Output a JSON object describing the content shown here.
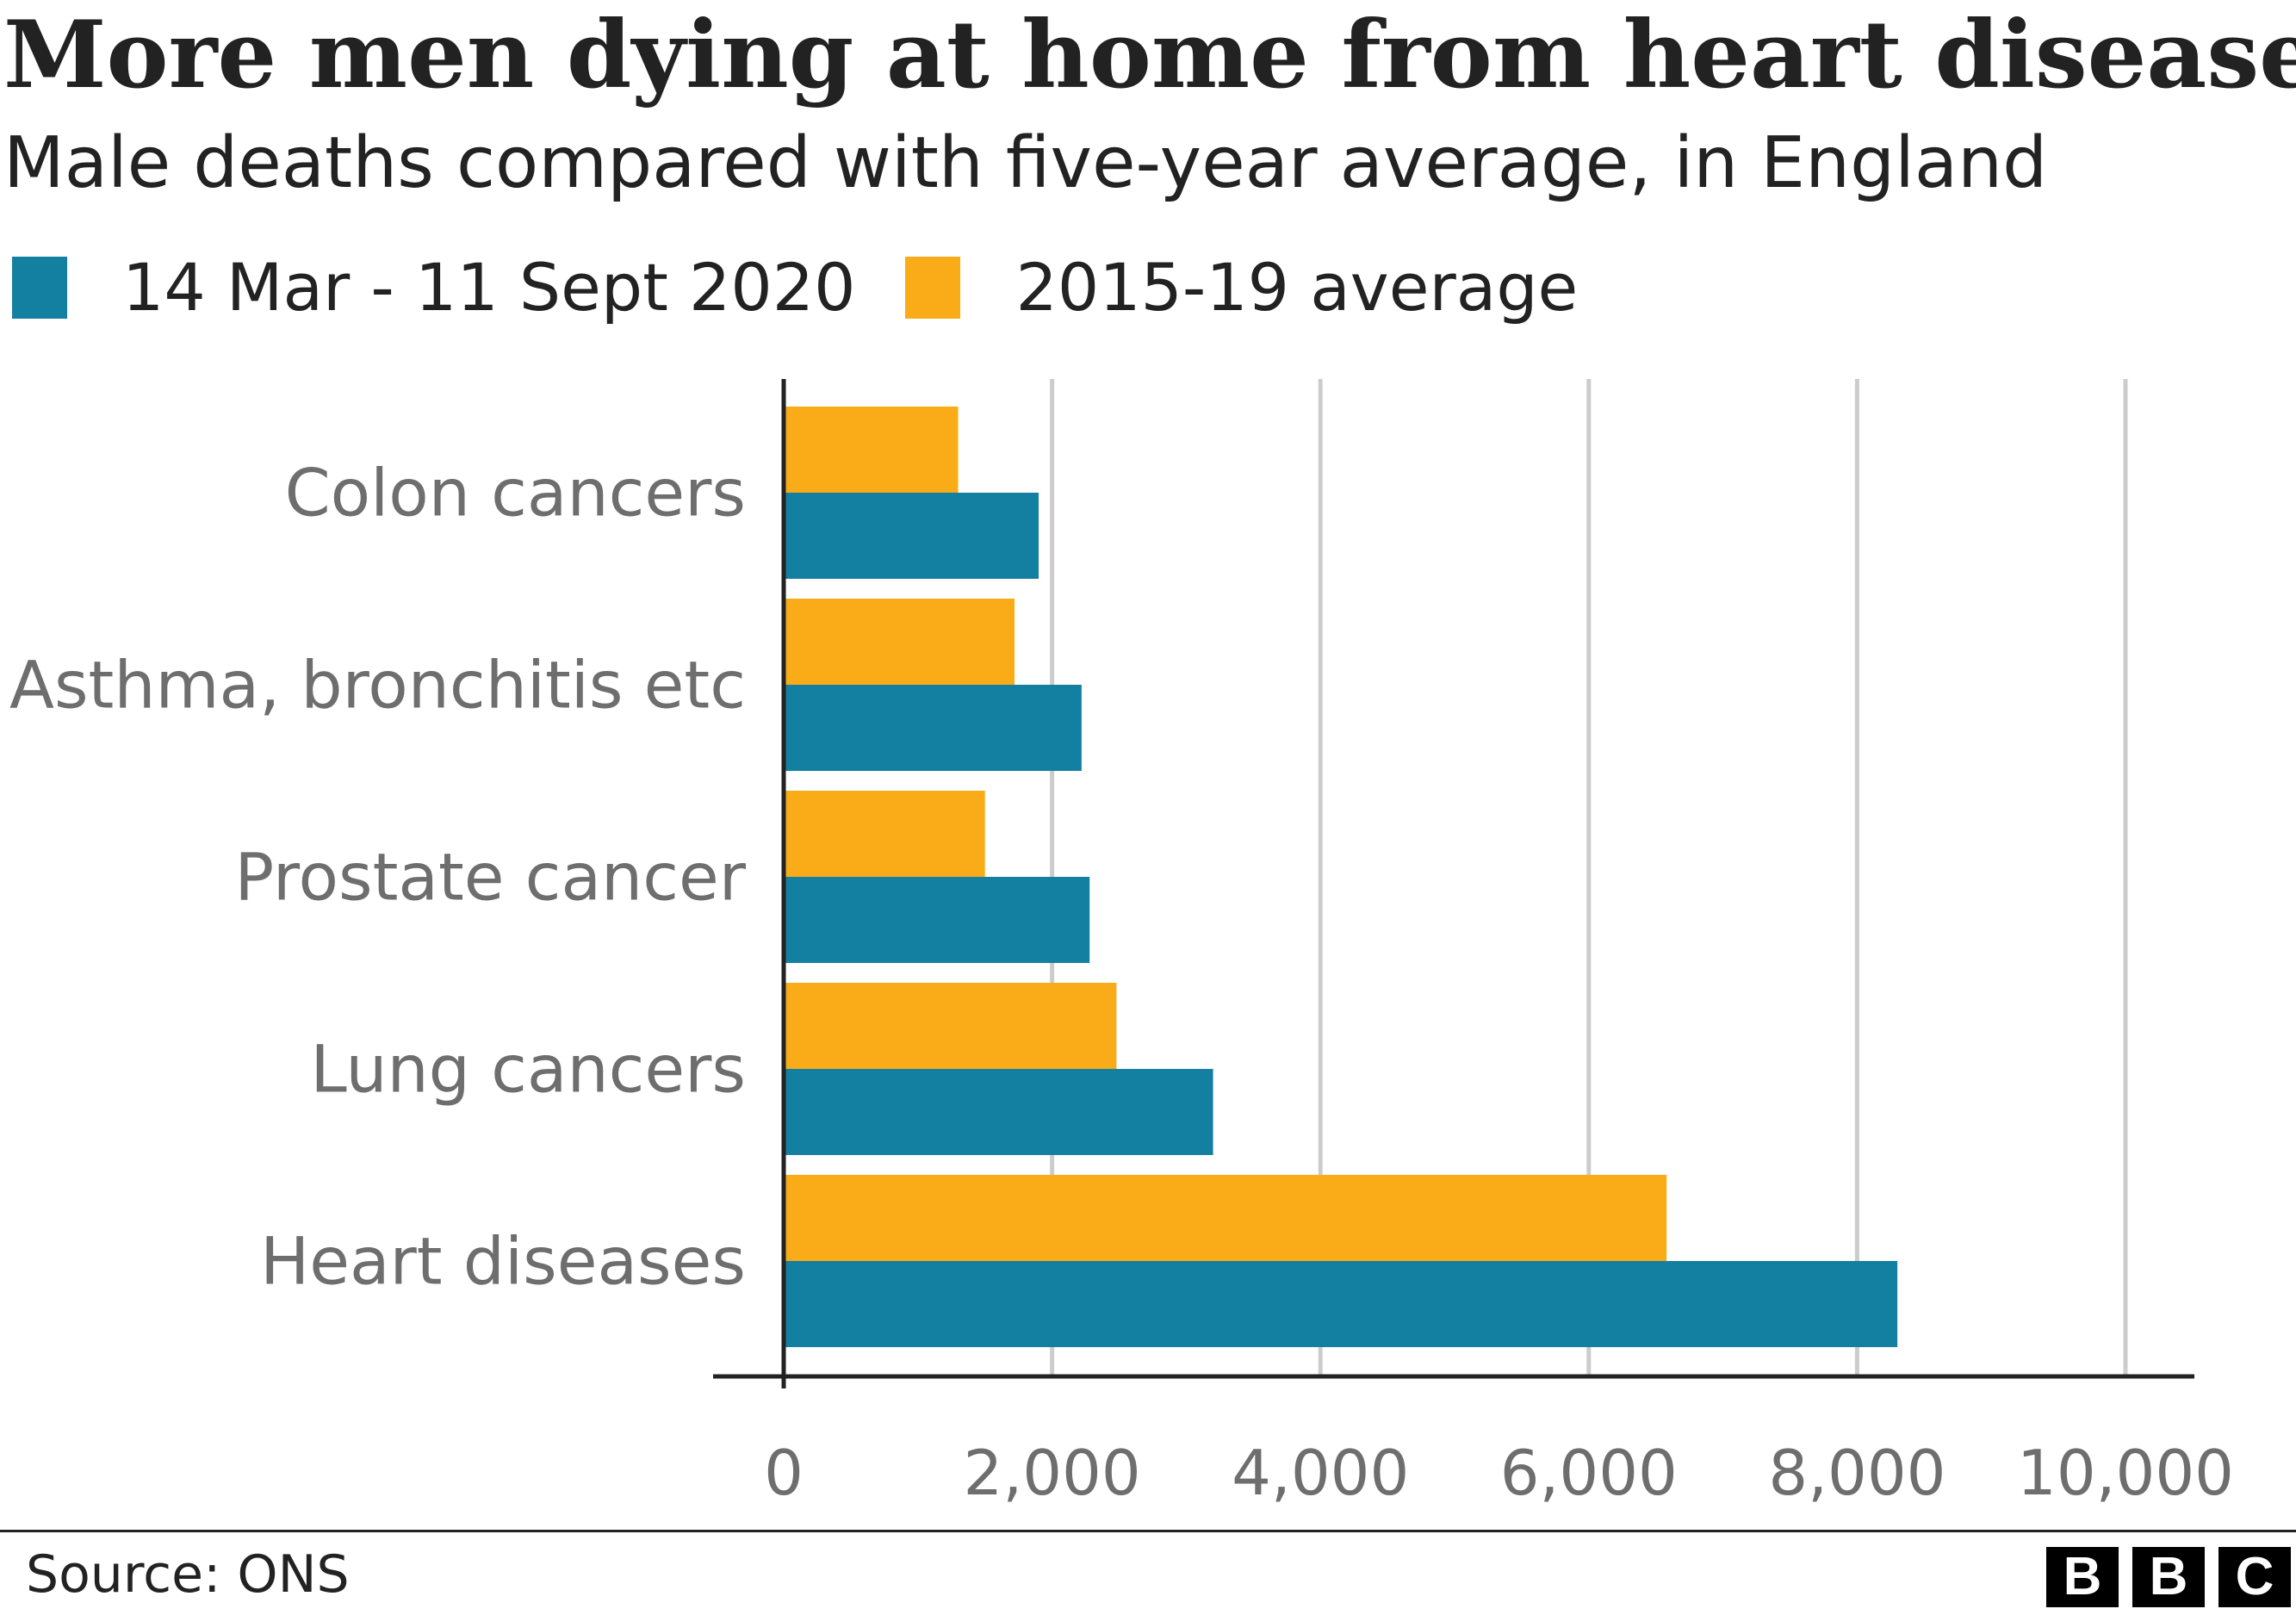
{
  "title": "More men dying at home from heart disease",
  "subtitle": "Male deaths compared with five-year average, in England",
  "legend": [
    {
      "label": "14 Mar - 11 Sept 2020",
      "color": "#1380A1"
    },
    {
      "label": "2015-19 average",
      "color": "#FAAB18"
    }
  ],
  "source": "Source: ONS",
  "logo": [
    "B",
    "B",
    "C"
  ],
  "chart_data": {
    "type": "bar",
    "orientation": "horizontal",
    "categories": [
      "Colon cancers",
      "Asthma, bronchitis etc",
      "Prostate cancer",
      "Lung cancers",
      "Heart diseases"
    ],
    "series": [
      {
        "name": "2015-19 average",
        "color": "#FAAB18",
        "values": [
          1300,
          1720,
          1500,
          2480,
          6580
        ]
      },
      {
        "name": "14 Mar - 11 Sept 2020",
        "color": "#1380A1",
        "values": [
          1900,
          2220,
          2280,
          3200,
          8300
        ]
      }
    ],
    "xlim": [
      0,
      10000
    ],
    "xticks": [
      0,
      2000,
      4000,
      6000,
      8000,
      10000
    ],
    "xtick_labels": [
      "0",
      "2,000",
      "4,000",
      "6,000",
      "8,000",
      "10,000"
    ],
    "grid": "vertical",
    "legend_position": "top-left",
    "xlabel": "",
    "ylabel": ""
  }
}
